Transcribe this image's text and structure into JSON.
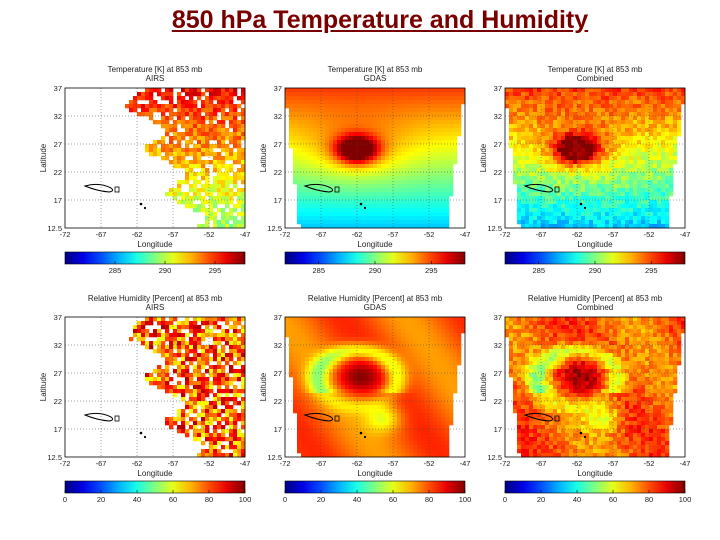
{
  "title": "850 hPa Temperature and Humidity",
  "chart_data": [
    {
      "type": "heatmap",
      "title": "Temperature [K] at 853 mb",
      "subtitle": "AIRS",
      "xlabel": "Longitude",
      "ylabel": "Latitude",
      "xticks": [
        "-72",
        "-67",
        "-62",
        "-57",
        "-52",
        "-47"
      ],
      "yticks": [
        "37",
        "32",
        "27",
        "22",
        "17",
        "12.5"
      ],
      "xlim": [
        -72,
        -47
      ],
      "ylim": [
        12.5,
        37
      ],
      "colorbar": {
        "ticks": [
          "285",
          "290",
          "295"
        ],
        "range": [
          280,
          298
        ]
      },
      "field": "temperature",
      "coverage": "swath"
    },
    {
      "type": "heatmap",
      "title": "Temperature [K] at 853 mb",
      "subtitle": "GDAS",
      "xlabel": "Longitude",
      "ylabel": "Latitude",
      "xticks": [
        "-72",
        "-67",
        "-62",
        "-57",
        "-52",
        "-47"
      ],
      "yticks": [
        "37",
        "32",
        "27",
        "22",
        "17",
        "12.5"
      ],
      "xlim": [
        -72,
        -47
      ],
      "ylim": [
        12.5,
        37
      ],
      "colorbar": {
        "ticks": [
          "285",
          "290",
          "295"
        ],
        "range": [
          282,
          298
        ]
      },
      "field": "temperature",
      "coverage": "full"
    },
    {
      "type": "heatmap",
      "title": "Temperature [K] at 853 mb",
      "subtitle": "Combined",
      "xlabel": "Longitude",
      "ylabel": "Latitude",
      "xticks": [
        "-72",
        "-67",
        "-62",
        "-57",
        "-52",
        "-47"
      ],
      "yticks": [
        "37",
        "32",
        "27",
        "22",
        "17",
        "12.5"
      ],
      "xlim": [
        -72,
        -47
      ],
      "ylim": [
        12.5,
        37
      ],
      "colorbar": {
        "ticks": [
          "285",
          "290",
          "295"
        ],
        "range": [
          282,
          298
        ]
      },
      "field": "temperature",
      "coverage": "noisy"
    },
    {
      "type": "heatmap",
      "title": "Relative Humidity [Percent] at 853 mb",
      "subtitle": "AIRS",
      "xlabel": "Longitude",
      "ylabel": "Latitude",
      "xticks": [
        "-72",
        "-67",
        "-62",
        "-57",
        "-52",
        "-47"
      ],
      "yticks": [
        "37",
        "32",
        "27",
        "22",
        "17",
        "12.5"
      ],
      "xlim": [
        -72,
        -47
      ],
      "ylim": [
        12.5,
        37
      ],
      "colorbar": {
        "ticks": [
          "0",
          "20",
          "40",
          "60",
          "80",
          "100"
        ],
        "range": [
          0,
          100
        ]
      },
      "field": "humidity",
      "coverage": "swath"
    },
    {
      "type": "heatmap",
      "title": "Relative Humidity [Percent] at 853 mb",
      "subtitle": "GDAS",
      "xlabel": "Longitude",
      "ylabel": "Latitude",
      "xticks": [
        "-72",
        "-67",
        "-62",
        "-57",
        "-52",
        "-47"
      ],
      "yticks": [
        "37",
        "32",
        "27",
        "22",
        "17",
        "12.5"
      ],
      "xlim": [
        -72,
        -47
      ],
      "ylim": [
        12.5,
        37
      ],
      "colorbar": {
        "ticks": [
          "0",
          "20",
          "40",
          "60",
          "80",
          "100"
        ],
        "range": [
          0,
          100
        ]
      },
      "field": "humidity",
      "coverage": "full"
    },
    {
      "type": "heatmap",
      "title": "Relative Humidity [Percent] at 853 mb",
      "subtitle": "Combined",
      "xlabel": "Longitude",
      "ylabel": "Latitude",
      "xticks": [
        "-72",
        "-67",
        "-62",
        "-57",
        "-52",
        "-47"
      ],
      "yticks": [
        "37",
        "32",
        "27",
        "22",
        "17",
        "12.5"
      ],
      "xlim": [
        -72,
        -47
      ],
      "ylim": [
        12.5,
        37
      ],
      "colorbar": {
        "ticks": [
          "0",
          "20",
          "40",
          "60",
          "80",
          "100"
        ],
        "range": [
          0,
          100
        ]
      },
      "field": "humidity",
      "coverage": "noisy"
    }
  ]
}
